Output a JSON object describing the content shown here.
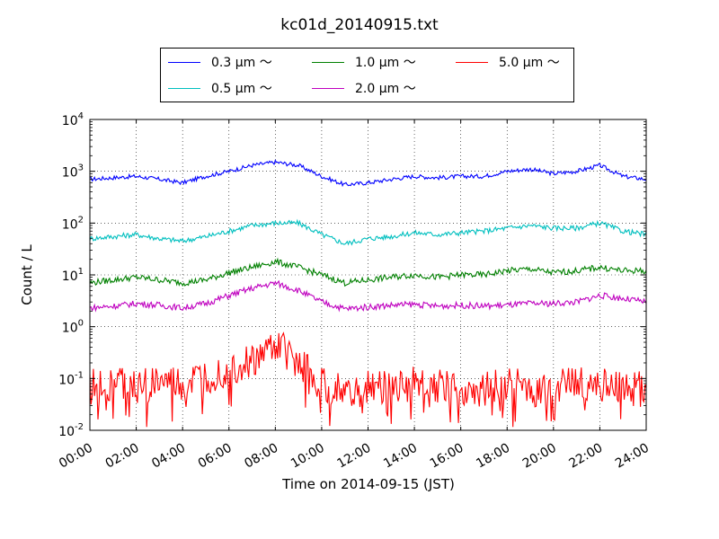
{
  "chart_data": {
    "type": "line",
    "title": "kc01d_20140915.txt",
    "xlabel": "Time on 2014-09-15 (JST)",
    "ylabel": "Count / L",
    "yscale": "log",
    "ylim": [
      0.01,
      10000
    ],
    "xlim": [
      "00:00",
      "24:00"
    ],
    "x_ticks": [
      "00:00",
      "02:00",
      "04:00",
      "06:00",
      "08:00",
      "10:00",
      "12:00",
      "14:00",
      "16:00",
      "18:00",
      "20:00",
      "22:00",
      "24:00"
    ],
    "y_ticks": [
      {
        "base": "10",
        "exp": "-2"
      },
      {
        "base": "10",
        "exp": "-1"
      },
      {
        "base": "10",
        "exp": "0"
      },
      {
        "base": "10",
        "exp": "1"
      },
      {
        "base": "10",
        "exp": "2"
      },
      {
        "base": "10",
        "exp": "3"
      },
      {
        "base": "10",
        "exp": "4"
      }
    ],
    "grid": true,
    "legend_position": "top-center",
    "x_hours": [
      0,
      1,
      2,
      3,
      4,
      5,
      6,
      7,
      8,
      9,
      10,
      11,
      12,
      13,
      14,
      15,
      16,
      17,
      18,
      19,
      20,
      21,
      22,
      23,
      24
    ],
    "series": [
      {
        "name": "0.3 μm ～",
        "color": "#0000ff",
        "values": [
          700,
          750,
          800,
          700,
          600,
          800,
          1000,
          1300,
          1500,
          1300,
          800,
          550,
          600,
          700,
          800,
          750,
          800,
          800,
          1000,
          1100,
          900,
          1000,
          1300,
          800,
          700
        ]
      },
      {
        "name": "0.5 μm ～",
        "color": "#00bfbf",
        "values": [
          50,
          55,
          60,
          50,
          45,
          55,
          70,
          90,
          100,
          100,
          60,
          40,
          50,
          55,
          65,
          60,
          65,
          70,
          80,
          90,
          80,
          80,
          100,
          70,
          60
        ]
      },
      {
        "name": "1.0 μm ～",
        "color": "#008000",
        "values": [
          7,
          8,
          9,
          8,
          7,
          8,
          11,
          14,
          18,
          14,
          10,
          7,
          8,
          9,
          10,
          9,
          10,
          10,
          12,
          13,
          11,
          12,
          14,
          12,
          12
        ]
      },
      {
        "name": "2.0 μm ～",
        "color": "#bf00bf",
        "values": [
          2.3,
          2.5,
          2.8,
          2.6,
          2.3,
          2.8,
          4,
          5.5,
          7,
          5,
          3,
          2.2,
          2.4,
          2.6,
          2.7,
          2.5,
          2.6,
          2.5,
          2.6,
          2.8,
          2.8,
          3,
          4,
          3.5,
          3
        ]
      },
      {
        "name": "5.0 μm ～",
        "color": "#ff0000",
        "values": [
          0.07,
          0.08,
          0.07,
          0.08,
          0.07,
          0.1,
          0.15,
          0.2,
          0.45,
          0.2,
          0.08,
          0.05,
          0.07,
          0.07,
          0.08,
          0.07,
          0.07,
          0.06,
          0.08,
          0.06,
          0.07,
          0.08,
          0.08,
          0.07,
          0.06
        ]
      }
    ]
  }
}
